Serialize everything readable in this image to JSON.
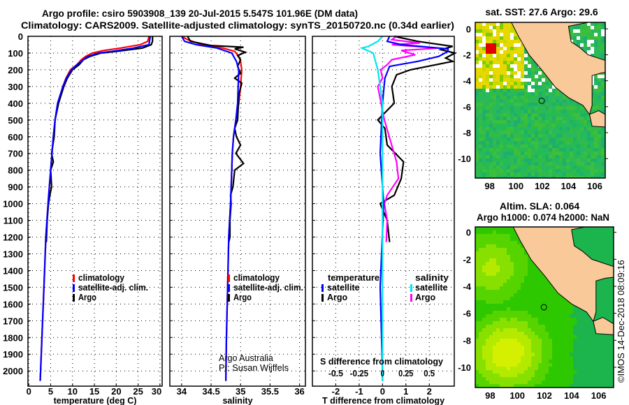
{
  "header": {
    "title_line1": "Argo profile: csiro 5903908_139 20-Jul-2015 5.547S 101.96E (DM data)",
    "title_line2": "Climatology: CARS2009. Satellite-adjusted climatology: synTS_20150720.nc (0.34d earlier)"
  },
  "annotations": {
    "credit_line1": "Argo Australia",
    "credit_line2": "PI: Susan Wijffels",
    "watermark": "©IMOS 14-Dec-2018 08:09:16"
  },
  "colors": {
    "climatology": "#ff0000",
    "satellite": "#0000ff",
    "argo": "#000000",
    "sal_satellite": "#00e5ee",
    "sal_argo": "#ff00ff",
    "land": "#f9c999"
  },
  "chart_data": [
    {
      "type": "line",
      "id": "temperature",
      "xlabel": "temperature (deg C)",
      "ylabel": "depth",
      "xlim": [
        -0.2,
        30.5
      ],
      "ylim": [
        2091,
        0
      ],
      "grid": true,
      "xticks": [
        0,
        5,
        10,
        15,
        20,
        25,
        30
      ],
      "yticks": [
        0,
        100,
        200,
        300,
        400,
        500,
        600,
        700,
        800,
        900,
        1000,
        1100,
        1200,
        1300,
        1400,
        1500,
        1600,
        1700,
        1800,
        1900,
        2000
      ],
      "legend": [
        "climatology",
        "satellite-adj. clim.",
        "Argo"
      ],
      "series": [
        {
          "name": "climatology",
          "color": "#ff0000",
          "points": [
            [
              27.5,
              0
            ],
            [
              27.2,
              30
            ],
            [
              25.5,
              50
            ],
            [
              21,
              70
            ],
            [
              17,
              85
            ],
            [
              14.5,
              100
            ],
            [
              13,
              120
            ],
            [
              12,
              140
            ],
            [
              11,
              170
            ],
            [
              9.5,
              200
            ],
            [
              8.5,
              250
            ],
            [
              7.8,
              300
            ],
            [
              6.6,
              400
            ],
            [
              6,
              500
            ],
            [
              5.6,
              600
            ],
            [
              5.3,
              700
            ],
            [
              5,
              800
            ],
            [
              4.7,
              900
            ],
            [
              4.4,
              1000
            ],
            [
              3.9,
              1200
            ],
            [
              3.6,
              1400
            ],
            [
              3.3,
              1600
            ],
            [
              3,
              1800
            ],
            [
              2.7,
              2000
            ],
            [
              2.6,
              2060
            ]
          ]
        },
        {
          "name": "Argo",
          "color": "#000000",
          "points": [
            [
              28.3,
              0
            ],
            [
              28.3,
              30
            ],
            [
              28,
              50
            ],
            [
              26,
              70
            ],
            [
              20,
              90
            ],
            [
              16.5,
              100
            ],
            [
              14,
              120
            ],
            [
              12.5,
              140
            ],
            [
              11.5,
              170
            ],
            [
              10,
              200
            ],
            [
              8.8,
              250
            ],
            [
              8,
              300
            ],
            [
              6.8,
              400
            ],
            [
              6,
              500
            ],
            [
              5.8,
              600
            ],
            [
              5.2,
              700
            ],
            [
              5.6,
              750
            ],
            [
              5,
              800
            ],
            [
              5.2,
              900
            ],
            [
              4.8,
              950
            ],
            [
              4.5,
              1000
            ],
            [
              4.2,
              1100
            ],
            [
              4,
              1230
            ]
          ]
        },
        {
          "name": "satellite-adj. clim.",
          "color": "#0000ff",
          "points": [
            [
              27.8,
              0
            ],
            [
              27.6,
              30
            ],
            [
              27.5,
              50
            ],
            [
              24,
              70
            ],
            [
              19,
              90
            ],
            [
              16,
              100
            ],
            [
              13.5,
              120
            ],
            [
              12.5,
              140
            ],
            [
              11,
              170
            ],
            [
              9.8,
              200
            ],
            [
              8.6,
              250
            ],
            [
              7.8,
              300
            ],
            [
              6.6,
              400
            ],
            [
              6,
              500
            ],
            [
              5.6,
              600
            ],
            [
              5.3,
              700
            ],
            [
              5,
              800
            ],
            [
              4.7,
              900
            ],
            [
              4.4,
              1000
            ],
            [
              3.9,
              1200
            ],
            [
              3.6,
              1400
            ],
            [
              3.3,
              1600
            ],
            [
              3,
              1800
            ],
            [
              2.7,
              2000
            ],
            [
              2.6,
              2060
            ]
          ]
        }
      ]
    },
    {
      "type": "line",
      "id": "salinity",
      "xlabel": "salinity",
      "ylabel": "depth",
      "xlim": [
        33.8,
        36.1
      ],
      "ylim": [
        2091,
        0
      ],
      "grid": true,
      "xticks": [
        34,
        34.5,
        35,
        35.5,
        36
      ],
      "legend": [
        "climatology",
        "satellite-adj. clim.",
        "Argo"
      ],
      "series": [
        {
          "name": "climatology",
          "color": "#ff0000",
          "points": [
            [
              34.0,
              0
            ],
            [
              34.1,
              20
            ],
            [
              34.35,
              50
            ],
            [
              34.7,
              70
            ],
            [
              34.9,
              90
            ],
            [
              34.97,
              120
            ],
            [
              35.0,
              150
            ],
            [
              35.02,
              200
            ],
            [
              35.0,
              300
            ],
            [
              34.97,
              400
            ],
            [
              34.92,
              500
            ],
            [
              34.88,
              600
            ],
            [
              34.86,
              700
            ],
            [
              34.85,
              800
            ],
            [
              34.83,
              1000
            ],
            [
              34.8,
              1200
            ],
            [
              34.78,
              1500
            ],
            [
              34.76,
              1800
            ],
            [
              34.75,
              2060
            ]
          ]
        },
        {
          "name": "Argo",
          "color": "#000000",
          "points": [
            [
              34.1,
              0
            ],
            [
              34.15,
              30
            ],
            [
              34.5,
              55
            ],
            [
              35.05,
              65
            ],
            [
              34.9,
              75
            ],
            [
              35.08,
              95
            ],
            [
              34.95,
              115
            ],
            [
              35.0,
              140
            ],
            [
              34.95,
              180
            ],
            [
              35.0,
              220
            ],
            [
              34.9,
              250
            ],
            [
              35.02,
              280
            ],
            [
              34.97,
              350
            ],
            [
              34.95,
              500
            ],
            [
              34.9,
              550
            ],
            [
              34.93,
              600
            ],
            [
              35.0,
              650
            ],
            [
              34.92,
              700
            ],
            [
              35.05,
              760
            ],
            [
              34.9,
              800
            ],
            [
              34.87,
              900
            ],
            [
              34.83,
              950
            ],
            [
              34.84,
              1000
            ],
            [
              34.82,
              1100
            ],
            [
              34.82,
              1200
            ],
            [
              34.8,
              1230
            ]
          ]
        },
        {
          "name": "satellite-adj. clim.",
          "color": "#0000ff",
          "points": [
            [
              34.0,
              0
            ],
            [
              34.05,
              30
            ],
            [
              34.25,
              50
            ],
            [
              34.6,
              70
            ],
            [
              34.85,
              100
            ],
            [
              34.93,
              150
            ],
            [
              34.97,
              200
            ],
            [
              34.96,
              300
            ],
            [
              34.95,
              400
            ],
            [
              34.92,
              500
            ],
            [
              34.88,
              600
            ],
            [
              34.86,
              700
            ],
            [
              34.85,
              800
            ],
            [
              34.83,
              1000
            ],
            [
              34.8,
              1200
            ],
            [
              34.78,
              1500
            ],
            [
              34.76,
              1800
            ],
            [
              34.75,
              2060
            ]
          ]
        }
      ]
    },
    {
      "type": "line",
      "id": "difference",
      "xlabel": "T difference from climatology",
      "ylabel": "depth",
      "x2label": "S difference from climatology",
      "xlim": [
        -3,
        3.07
      ],
      "ylim": [
        2091,
        0
      ],
      "grid": true,
      "xticks": [
        -2,
        -1,
        0,
        1,
        2
      ],
      "x2ticks": [
        "-0.5",
        "-0.25",
        "0",
        "0.25",
        "0.5"
      ],
      "x2_scale_note": "S axis = T axis / 4",
      "legend_temperature": {
        "title": "temperature",
        "items": [
          "satellite",
          "Argo"
        ]
      },
      "legend_salinity": {
        "title": "salinity",
        "items": [
          "satellite",
          "Argo"
        ]
      },
      "series": [
        {
          "name": "temperature Argo",
          "axis": "T",
          "color": "#000000",
          "points": [
            [
              0.5,
              0
            ],
            [
              1.5,
              30
            ],
            [
              3.0,
              60
            ],
            [
              2.5,
              80
            ],
            [
              3.1,
              100
            ],
            [
              2.7,
              130
            ],
            [
              3.0,
              150
            ],
            [
              1.2,
              200
            ],
            [
              0.6,
              230
            ],
            [
              0.4,
              300
            ],
            [
              0.5,
              400
            ],
            [
              -0.2,
              500
            ],
            [
              0.1,
              550
            ],
            [
              0.2,
              650
            ],
            [
              0.9,
              750
            ],
            [
              0.8,
              850
            ],
            [
              0.5,
              950
            ],
            [
              -0.1,
              1000
            ],
            [
              0.2,
              1100
            ],
            [
              0.3,
              1230
            ]
          ]
        },
        {
          "name": "salinity Argo",
          "axis": "S",
          "color": "#ff00ff",
          "points": [
            [
              0.15,
              0
            ],
            [
              0.1,
              20
            ],
            [
              0.4,
              40
            ],
            [
              0.1,
              50
            ],
            [
              0.6,
              70
            ],
            [
              0.2,
              85
            ],
            [
              0.35,
              110
            ],
            [
              0.1,
              140
            ],
            [
              0.05,
              170
            ],
            [
              -0.02,
              200
            ],
            [
              0.0,
              250
            ],
            [
              -0.05,
              300
            ],
            [
              0.02,
              500
            ],
            [
              0.15,
              750
            ],
            [
              0.17,
              850
            ],
            [
              0.05,
              950
            ],
            [
              0.02,
              1000
            ],
            [
              0.05,
              1100
            ],
            [
              0.04,
              1230
            ]
          ]
        },
        {
          "name": "temperature satellite",
          "axis": "T",
          "color": "#0000ff",
          "points": [
            [
              0.3,
              0
            ],
            [
              0.2,
              30
            ],
            [
              0.8,
              50
            ],
            [
              2.8,
              75
            ],
            [
              2.8,
              90
            ],
            [
              2.4,
              120
            ],
            [
              1.5,
              150
            ],
            [
              0.3,
              180
            ],
            [
              0.1,
              250
            ],
            [
              0,
              400
            ],
            [
              -0.1,
              700
            ],
            [
              0.05,
              1000
            ],
            [
              -0.1,
              1500
            ],
            [
              0,
              2000
            ],
            [
              0,
              2060
            ]
          ]
        },
        {
          "name": "salinity satellite",
          "axis": "S",
          "color": "#00e5ee",
          "points": [
            [
              0,
              0
            ],
            [
              -0.05,
              30
            ],
            [
              -0.15,
              60
            ],
            [
              -0.22,
              70
            ],
            [
              -0.1,
              100
            ],
            [
              -0.05,
              200
            ],
            [
              0,
              400
            ],
            [
              0,
              2060
            ]
          ]
        }
      ]
    },
    {
      "type": "heatmap",
      "id": "sst-map",
      "title": "sat. SST: 27.6 Argo: 29.6",
      "xlim": [
        96.9,
        106.8
      ],
      "ylim": [
        -11.5,
        0.5
      ],
      "xticks": [
        98,
        100,
        102,
        104,
        106
      ],
      "yticks": [
        0,
        -2,
        -4,
        -6,
        -8,
        -10
      ]
    },
    {
      "type": "heatmap",
      "id": "sla-map",
      "title_line1": "Altim. SLA: 0.064",
      "title_line2": "Argo h1000: 0.074 h2000: NaN",
      "xlim": [
        96.9,
        107.1
      ],
      "ylim": [
        -11.5,
        0.4
      ],
      "xticks": [
        98,
        100,
        102,
        104,
        106
      ],
      "yticks": [
        0,
        -2,
        -4,
        -6,
        -8,
        -10
      ]
    }
  ]
}
